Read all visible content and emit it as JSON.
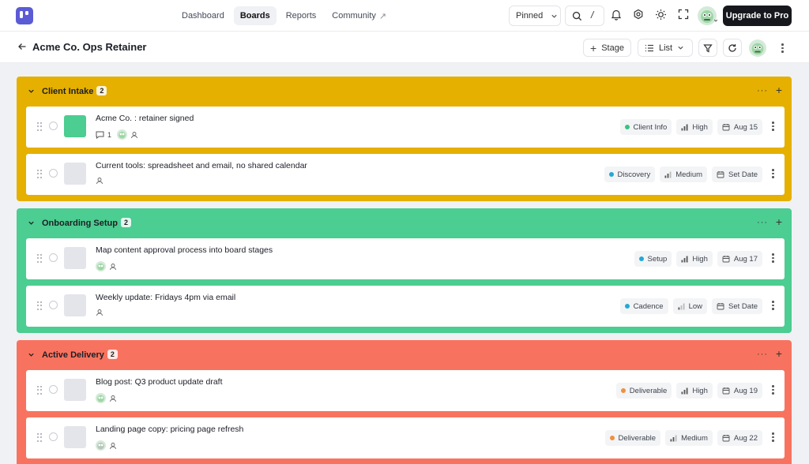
{
  "nav": {
    "links": [
      {
        "label": "Dashboard"
      },
      {
        "label": "Boards"
      },
      {
        "label": "Reports"
      },
      {
        "label": "Community"
      }
    ],
    "pinned_label": "Pinned",
    "search_shortcut": "/",
    "upgrade_label": "Upgrade to Pro"
  },
  "subheader": {
    "title": "Acme Co. Ops Retainer",
    "stage_label": "Stage",
    "view_label": "List"
  },
  "colors": {
    "client_intake": "#e5b000",
    "onboarding_setup": "#4ccd91",
    "active_delivery": "#f8735f",
    "dot_green": "#36c47f",
    "dot_blue": "#22a8d6",
    "dot_orange": "#f0903e",
    "upgrade_bg": "#16181d",
    "logo": "#5b5bd6"
  },
  "groups": [
    {
      "title": "Client Intake",
      "count": "2",
      "cards": [
        {
          "title": "Acme Co. : retainer signed",
          "comments": "1",
          "tag": "Client Info",
          "priority": "High",
          "date": "Aug 15"
        },
        {
          "title": "Current tools: spreadsheet and email, no shared calendar",
          "tag": "Discovery",
          "priority": "Medium",
          "date": "Set Date"
        }
      ]
    },
    {
      "title": "Onboarding Setup",
      "count": "2",
      "cards": [
        {
          "title": "Map content approval process into board stages",
          "tag": "Setup",
          "priority": "High",
          "date": "Aug 17"
        },
        {
          "title": "Weekly update: Fridays 4pm via email",
          "tag": "Cadence",
          "priority": "Low",
          "date": "Set Date"
        }
      ]
    },
    {
      "title": "Active Delivery",
      "count": "2",
      "cards": [
        {
          "title": "Blog post: Q3 product update draft",
          "tag": "Deliverable",
          "priority": "High",
          "date": "Aug 19"
        },
        {
          "title": "Landing page copy: pricing page refresh",
          "tag": "Deliverable",
          "priority": "Medium",
          "date": "Aug 22"
        }
      ]
    }
  ]
}
